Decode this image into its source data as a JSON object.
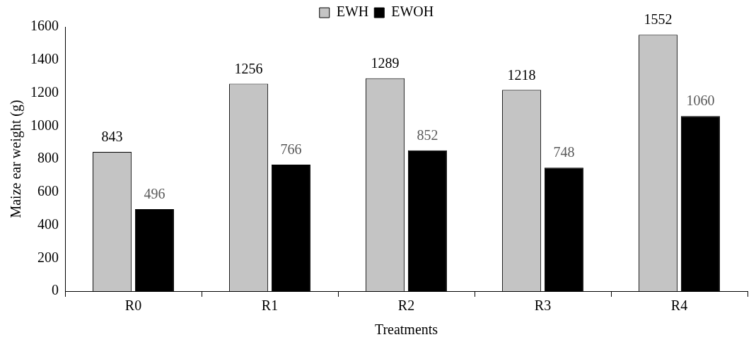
{
  "chart_data": {
    "type": "bar",
    "xlabel": "Treatments",
    "ylabel": "Maize ear weight (g)",
    "categories": [
      "R0",
      "R1",
      "R2",
      "R3",
      "R4"
    ],
    "series": [
      {
        "name": "EWH",
        "color": "#c4c4c4",
        "values": [
          843,
          1256,
          1289,
          1218,
          1552
        ]
      },
      {
        "name": "EWOH",
        "color": "#000000",
        "values": [
          496,
          766,
          852,
          748,
          1060
        ]
      }
    ],
    "ylim": [
      0,
      1600
    ],
    "yticks": [
      0,
      200,
      400,
      600,
      800,
      1000,
      1200,
      1400,
      1600
    ],
    "grid": false,
    "legend": "top",
    "data_labels": true
  }
}
